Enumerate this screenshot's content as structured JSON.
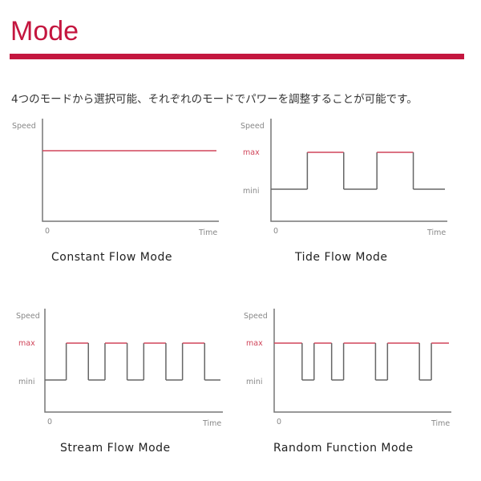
{
  "title": "Mode",
  "description": "4つのモードから選択可能、それぞれのモードでパワーを調整することが可能です。",
  "colors": {
    "accent": "#c4163f",
    "axis": "#777777",
    "signal": "#666666",
    "max_line": "#d0455a"
  },
  "chart_data": [
    {
      "type": "line",
      "caption": "Constant Flow Mode",
      "ylabel": "Speed",
      "xlabel": "Time",
      "x_origin": "0",
      "levels": [],
      "steps": [
        [
          "const",
          1
        ]
      ]
    },
    {
      "type": "line",
      "caption": "Tide Flow Mode",
      "ylabel": "Speed",
      "xlabel": "Time",
      "x_origin": "0",
      "levels": [
        "max",
        "mini"
      ],
      "steps": [
        [
          "mini",
          46
        ],
        [
          "max",
          46
        ],
        [
          "mini",
          42
        ],
        [
          "max",
          46
        ],
        [
          "mini",
          40
        ]
      ]
    },
    {
      "type": "line",
      "caption": "Stream Flow Mode",
      "ylabel": "Speed",
      "xlabel": "Time",
      "x_origin": "0",
      "levels": [
        "max",
        "mini"
      ],
      "steps": [
        [
          "mini",
          27
        ],
        [
          "max",
          28
        ],
        [
          "mini",
          21
        ],
        [
          "max",
          28
        ],
        [
          "mini",
          21
        ],
        [
          "max",
          28
        ],
        [
          "mini",
          21
        ],
        [
          "max",
          28
        ],
        [
          "mini",
          20
        ]
      ]
    },
    {
      "type": "line",
      "caption": "Random Function Mode",
      "ylabel": "Speed",
      "xlabel": "Time",
      "x_origin": "0",
      "levels": [
        "max",
        "mini"
      ],
      "steps": [
        [
          "max",
          35
        ],
        [
          "mini",
          15
        ],
        [
          "max",
          22
        ],
        [
          "mini",
          15
        ],
        [
          "max",
          40
        ],
        [
          "mini",
          15
        ],
        [
          "max",
          40
        ],
        [
          "mini",
          15
        ],
        [
          "max",
          22
        ]
      ]
    }
  ]
}
